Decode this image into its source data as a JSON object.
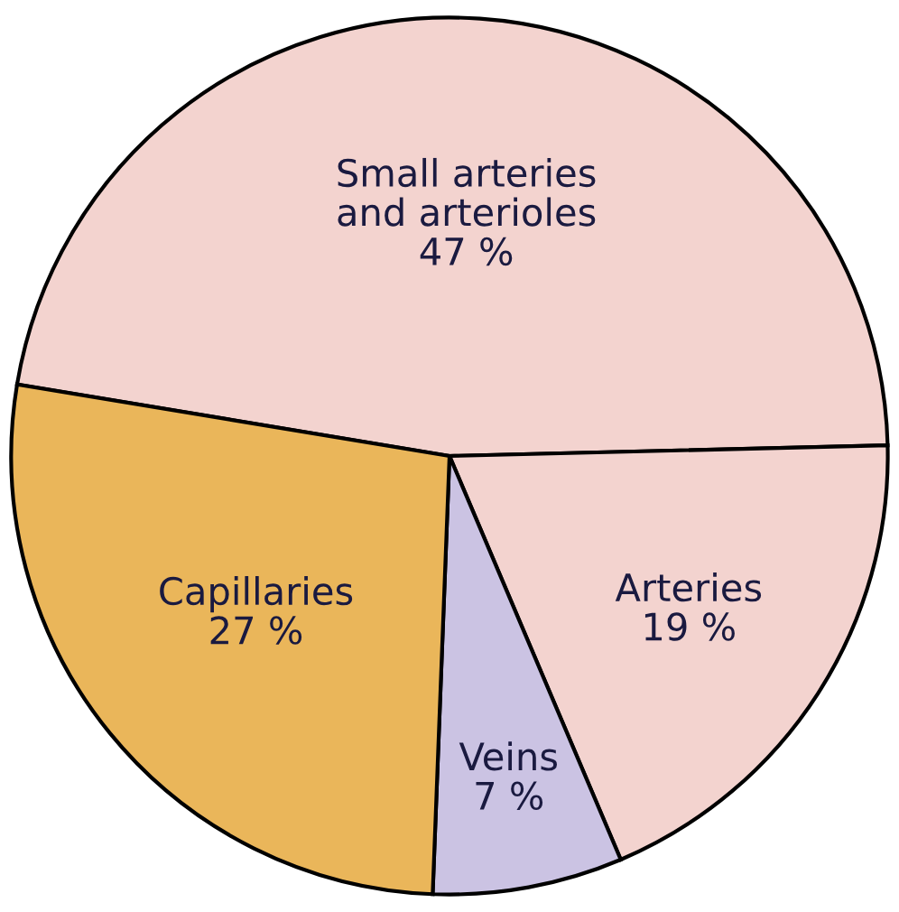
{
  "chart_data": {
    "type": "pie",
    "categories": [
      "Small arteries\nand arterioles",
      "Arteries",
      "Veins",
      "Capillaries"
    ],
    "values": [
      47,
      19,
      7,
      27
    ],
    "value_labels": [
      "47 %",
      "19 %",
      "7 %",
      "27 %"
    ],
    "colors": [
      "#f3d3cf",
      "#f3d3cf",
      "#cbc3e3",
      "#eab65a"
    ],
    "legend": false
  }
}
